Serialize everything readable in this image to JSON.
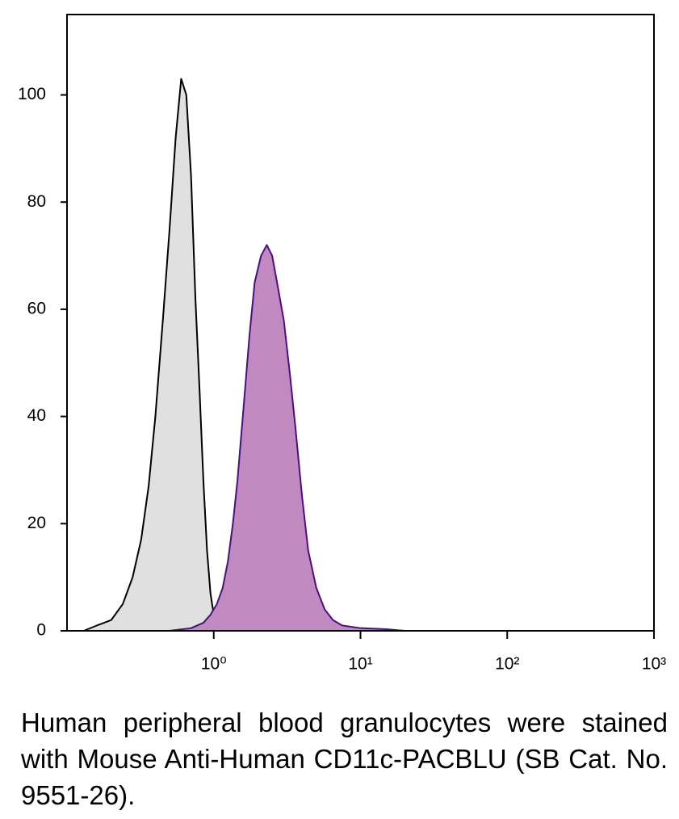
{
  "chart_data": {
    "type": "area",
    "xscale": "log",
    "xlim": [
      0.1,
      1000
    ],
    "ylim": [
      0,
      115
    ],
    "xticks": [
      {
        "value": 1,
        "label": "10⁰"
      },
      {
        "value": 10,
        "label": "10¹"
      },
      {
        "value": 100,
        "label": "10²"
      },
      {
        "value": 1000,
        "label": "10³"
      }
    ],
    "yticks": [
      0,
      20,
      40,
      60,
      80,
      100
    ],
    "series": [
      {
        "color": "#000000",
        "fill": "#e0e0e0",
        "x": [
          0.13,
          0.16,
          0.2,
          0.24,
          0.28,
          0.32,
          0.36,
          0.4,
          0.45,
          0.5,
          0.55,
          0.6,
          0.65,
          0.7,
          0.75,
          0.8,
          0.85,
          0.9,
          0.95,
          1.0,
          1.1,
          1.2,
          1.5,
          2,
          2.5,
          3,
          4
        ],
        "values": [
          0,
          1,
          2,
          5,
          10,
          17,
          27,
          40,
          58,
          75,
          92,
          103,
          100,
          85,
          62,
          45,
          28,
          15,
          7,
          3,
          1,
          0.5,
          1,
          2,
          1,
          0.5,
          0
        ]
      },
      {
        "color": "#4b0f7f",
        "fill": "#c08ac0",
        "x": [
          0.5,
          0.7,
          0.85,
          0.95,
          1.05,
          1.15,
          1.25,
          1.35,
          1.45,
          1.6,
          1.75,
          1.9,
          2.1,
          2.3,
          2.5,
          2.7,
          3.0,
          3.3,
          3.6,
          4.0,
          4.4,
          5.0,
          5.7,
          6.5,
          7.5,
          10,
          15,
          20
        ],
        "values": [
          0,
          0.5,
          1.5,
          3,
          5,
          8,
          13,
          20,
          28,
          42,
          55,
          65,
          70,
          72,
          70,
          65,
          58,
          48,
          38,
          25,
          15,
          8,
          4,
          2,
          1,
          0.5,
          0.3,
          0
        ]
      }
    ],
    "caption": "Human peripheral blood granulocytes were stained with Mouse Anti-Human CD11c-PACBLU (SB Cat. No. 9551-26)."
  }
}
